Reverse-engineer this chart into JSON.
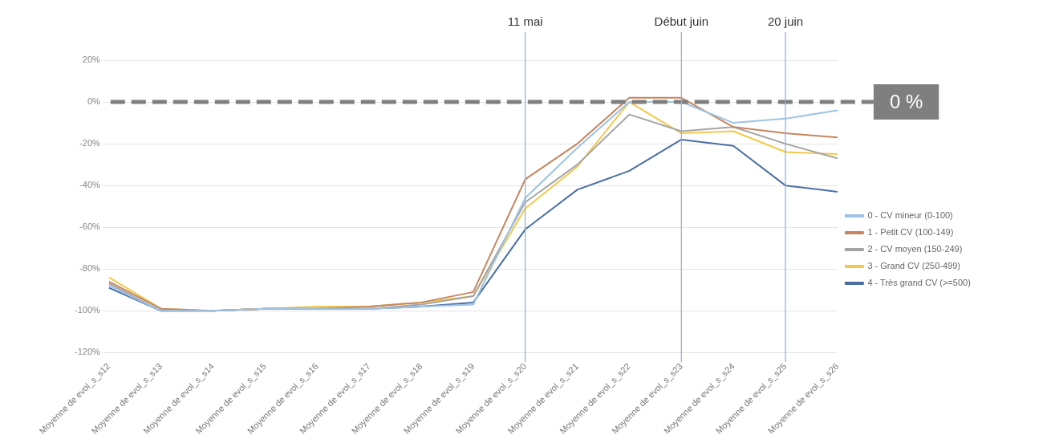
{
  "chart_data": {
    "type": "line",
    "categories": [
      "Moyenne de evol_s_s12",
      "Moyenne de evol_s_s13",
      "Moyenne de evol_s_s14",
      "Moyenne de evol_s_s15",
      "Moyenne de evol_s_s16",
      "Moyenne de evol_s_s17",
      "Moyenne de evol_s_s18",
      "Moyenne de evol_s_s19",
      "Moyenne de evol_s_s20",
      "Moyenne de evol_s_s21",
      "Moyenne de evol_s_s22",
      "Moyenne de evol_s_s23",
      "Moyenne de evol_s_s24",
      "Moyenne de evol_s_s25",
      "Moyenne de evol_s_s26"
    ],
    "series": [
      {
        "name": "0 - CV mineur (0-100)",
        "color": "#9dc3e6",
        "values": [
          -88,
          -100,
          -100,
          -99,
          -99,
          -99,
          -98,
          -97,
          -46,
          -22,
          0,
          0,
          -10,
          -8,
          -4
        ]
      },
      {
        "name": "1 - Petit CV (100-149)",
        "color": "#c5865e",
        "values": [
          -86,
          -99,
          -100,
          -99,
          -99,
          -98,
          -96,
          -91,
          -37,
          -20,
          2,
          2,
          -12,
          -15,
          -17
        ]
      },
      {
        "name": "2 - CV moyen (150-249)",
        "color": "#a5a5a5",
        "values": [
          -87,
          -100,
          -100,
          -99,
          -99,
          -99,
          -97,
          -93,
          -48,
          -30,
          -6,
          -14,
          -12,
          -20,
          -27
        ]
      },
      {
        "name": "3 - Grand CV (250-499)",
        "color": "#f2c94c",
        "values": [
          -84,
          -99,
          -100,
          -99,
          -98,
          -98,
          -96,
          -93,
          -51,
          -31,
          0,
          -15,
          -14,
          -24,
          -25
        ]
      },
      {
        "name": "4 - Très grand CV (>=500)",
        "color": "#4a6fa5",
        "values": [
          -89,
          -100,
          -100,
          -99,
          -99,
          -99,
          -98,
          -96,
          -61,
          -42,
          -33,
          -18,
          -21,
          -40,
          -43
        ]
      }
    ],
    "ylim": [
      -120,
      20
    ],
    "yticks": [
      {
        "value": -120,
        "label": "-120%"
      },
      {
        "value": -100,
        "label": "-100%"
      },
      {
        "value": -80,
        "label": "-80%"
      },
      {
        "value": -60,
        "label": "-60%"
      },
      {
        "value": -40,
        "label": "-40%"
      },
      {
        "value": -20,
        "label": "-20%"
      },
      {
        "value": 0,
        "label": "0%"
      },
      {
        "value": 20,
        "label": "20%"
      }
    ],
    "grid": "y",
    "legend": "right",
    "marker": "none",
    "line_style": "solid",
    "ref_lines": [
      {
        "axis": "y",
        "value": 0,
        "label": "0 %",
        "color": "#7f7f7f",
        "line_style": "dashed"
      },
      {
        "axis": "x",
        "value": "Moyenne de evol_s_s20",
        "label": "11 mai",
        "color": "#8faed0",
        "line_style": "solid"
      },
      {
        "axis": "x",
        "value": "Moyenne de evol_s_s23",
        "label": "Début juin",
        "color": "#8faed0",
        "line_style": "solid"
      },
      {
        "axis": "x",
        "value": "Moyenne de evol_s_s25",
        "label": "20 juin",
        "color": "#8faed0",
        "line_style": "solid"
      }
    ]
  }
}
